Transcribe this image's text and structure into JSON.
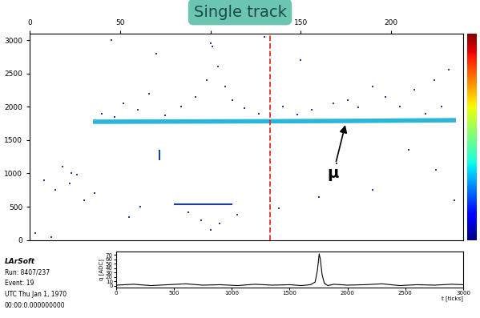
{
  "chart_data": [
    {
      "type": "scatter",
      "title": "Single track",
      "xlim": [
        0,
        240
      ],
      "xticks": [
        0,
        50,
        100,
        150,
        200
      ],
      "ylim": [
        0,
        3100
      ],
      "yticks": [
        0,
        500,
        1000,
        1500,
        2000,
        2500,
        3000
      ],
      "series": [
        {
          "type": "line",
          "color": "#2bb5d8",
          "x": [
            35,
            80,
            130,
            180,
            236
          ],
          "values": [
            1775,
            1778,
            1782,
            1788,
            1798
          ]
        },
        {
          "type": "line",
          "color": "#1f3f9f",
          "x": [
            72,
            72
          ],
          "values": [
            1200,
            1350
          ]
        },
        {
          "type": "line",
          "color": "#1f3f9f",
          "x": [
            80,
            112
          ],
          "values": [
            540,
            540
          ]
        },
        {
          "type": "scatter",
          "color": "#1f3f9f",
          "marker": "square",
          "x": [
            40,
            47,
            52,
            60,
            66,
            75,
            84,
            92,
            98,
            101,
            104,
            108,
            112,
            119,
            127,
            140,
            148,
            156,
            168,
            176,
            182,
            190,
            197,
            205,
            213,
            219,
            224,
            228,
            232,
            8,
            14,
            22,
            30,
            36,
            23,
            26,
            55,
            61,
            88,
            95,
            100,
            105,
            115,
            138,
            160,
            170,
            190,
            210,
            225,
            235,
            45,
            70,
            100,
            130,
            150,
            3,
            12,
            18
          ],
          "values": [
            1900,
            1850,
            2050,
            1950,
            2200,
            1870,
            2000,
            2150,
            2400,
            2900,
            2600,
            2300,
            2100,
            1980,
            1900,
            2000,
            1880,
            1950,
            2050,
            2100,
            1990,
            2300,
            2150,
            2000,
            2250,
            1900,
            2400,
            2000,
            2550,
            900,
            750,
            850,
            600,
            700,
            1000,
            980,
            350,
            500,
            420,
            300,
            150,
            250,
            380,
            480,
            650,
            1150,
            750,
            1350,
            1050,
            600,
            3000,
            2800,
            2950,
            3050,
            2700,
            100,
            50,
            1100
          ]
        }
      ],
      "vlines": [
        {
          "x": 133,
          "color": "#e03020",
          "line_style": "dashed"
        }
      ],
      "annotations": [
        {
          "text": "μ",
          "x": 175,
          "y": 1760,
          "text_x": 168,
          "text_y": 1000
        }
      ]
    },
    {
      "type": "line",
      "x_label": "t [ticks]",
      "y_label": "q [ADC]",
      "xlim": [
        0,
        3000
      ],
      "xticks": [
        0,
        500,
        1000,
        1500,
        2000,
        2500,
        3000
      ],
      "ylim": [
        -5,
        78
      ],
      "yticks": [
        0,
        10,
        20,
        30,
        40,
        50,
        60,
        70
      ],
      "series": [
        {
          "color": "#000000",
          "x": [
            0,
            150,
            300,
            450,
            600,
            750,
            900,
            1050,
            1200,
            1350,
            1500,
            1600,
            1680,
            1720,
            1740,
            1755,
            1765,
            1780,
            1800,
            1830,
            1880,
            2000,
            2150,
            2300,
            2450,
            2600,
            2750,
            2900,
            3000
          ],
          "values": [
            1,
            3,
            0,
            2,
            4,
            1,
            2,
            0,
            3,
            1,
            2,
            0,
            2,
            8,
            35,
            72,
            60,
            25,
            5,
            0,
            3,
            1,
            2,
            4,
            0,
            2,
            1,
            3,
            2
          ]
        }
      ]
    }
  ],
  "info": [
    "LArSoft",
    "Run: 8407/237",
    "Event: 19",
    "UTC Thu Jan 1, 1970",
    "00:00:0.000000000"
  ]
}
